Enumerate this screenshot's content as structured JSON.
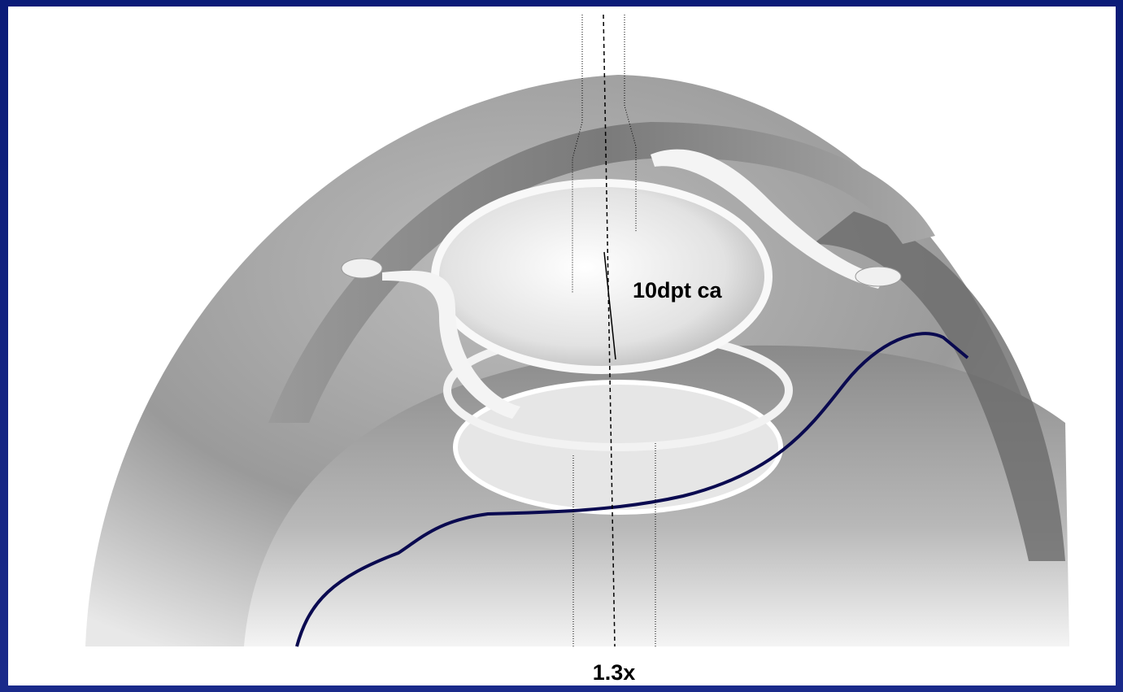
{
  "labels": {
    "power": "10dpt ca",
    "magnification": "1.3x"
  }
}
